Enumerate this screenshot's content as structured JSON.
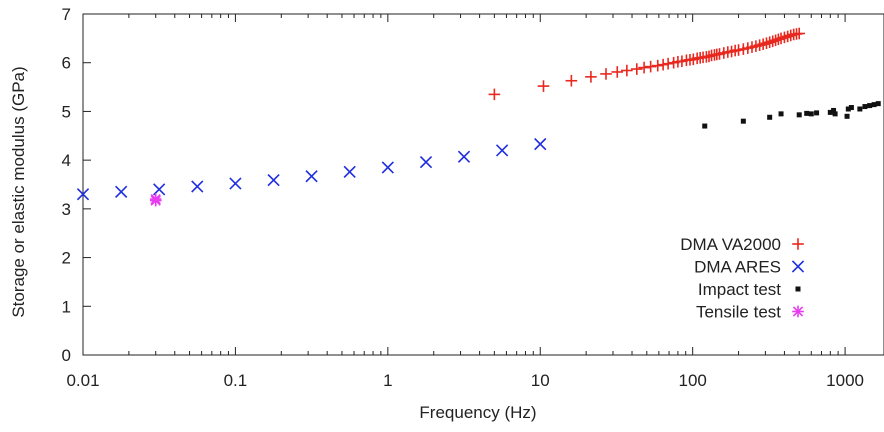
{
  "chart_data": {
    "type": "scatter",
    "xlabel": "Frequency (Hz)",
    "ylabel": "Storage or elastic modulus (GPa)",
    "x_scale": "log",
    "xlim": [
      0.01,
      1800
    ],
    "ylim": [
      0,
      7
    ],
    "x_ticks": [
      {
        "value": 0.01,
        "label": "0.01"
      },
      {
        "value": 0.1,
        "label": "0.1"
      },
      {
        "value": 1,
        "label": "1"
      },
      {
        "value": 10,
        "label": "10"
      },
      {
        "value": 100,
        "label": "100"
      },
      {
        "value": 1000,
        "label": "1000"
      }
    ],
    "y_ticks": [
      {
        "value": 0,
        "label": "0"
      },
      {
        "value": 1,
        "label": "1"
      },
      {
        "value": 2,
        "label": "2"
      },
      {
        "value": 3,
        "label": "3"
      },
      {
        "value": 4,
        "label": "4"
      },
      {
        "value": 5,
        "label": "5"
      },
      {
        "value": 6,
        "label": "6"
      },
      {
        "value": 7,
        "label": "7"
      }
    ],
    "grid": false,
    "legend_position": "bottom-right",
    "series": [
      {
        "name": "DMA VA2000",
        "marker": "plus",
        "color": "#e8281e",
        "points": [
          [
            5,
            5.35
          ],
          [
            10.5,
            5.52
          ],
          [
            16,
            5.63
          ],
          [
            21.5,
            5.71
          ],
          [
            27,
            5.77
          ],
          [
            32,
            5.81
          ],
          [
            37,
            5.84
          ],
          [
            43,
            5.87
          ],
          [
            48,
            5.9
          ],
          [
            53,
            5.92
          ],
          [
            59,
            5.94
          ],
          [
            64,
            5.96
          ],
          [
            69,
            5.98
          ],
          [
            75,
            6.0
          ],
          [
            80,
            6.02
          ],
          [
            85,
            6.03
          ],
          [
            91,
            6.05
          ],
          [
            96,
            6.06
          ],
          [
            101,
            6.07
          ],
          [
            107,
            6.09
          ],
          [
            112,
            6.1
          ],
          [
            117,
            6.11
          ],
          [
            123,
            6.12
          ],
          [
            128,
            6.13
          ],
          [
            133,
            6.15
          ],
          [
            139,
            6.16
          ],
          [
            144,
            6.17
          ],
          [
            150,
            6.18
          ],
          [
            160,
            6.2
          ],
          [
            170,
            6.22
          ],
          [
            180,
            6.23
          ],
          [
            190,
            6.25
          ],
          [
            200,
            6.26
          ],
          [
            215,
            6.28
          ],
          [
            230,
            6.3
          ],
          [
            245,
            6.32
          ],
          [
            260,
            6.34
          ],
          [
            275,
            6.36
          ],
          [
            290,
            6.38
          ],
          [
            305,
            6.4
          ],
          [
            320,
            6.42
          ],
          [
            335,
            6.44
          ],
          [
            350,
            6.46
          ],
          [
            365,
            6.48
          ],
          [
            380,
            6.5
          ],
          [
            400,
            6.52
          ],
          [
            420,
            6.54
          ],
          [
            440,
            6.56
          ],
          [
            460,
            6.58
          ],
          [
            480,
            6.59
          ],
          [
            500,
            6.6
          ]
        ]
      },
      {
        "name": "DMA ARES",
        "marker": "cross",
        "color": "#1f2fe0",
        "points": [
          [
            0.01,
            3.3
          ],
          [
            0.0178,
            3.35
          ],
          [
            0.0316,
            3.4
          ],
          [
            0.0562,
            3.46
          ],
          [
            0.1,
            3.52
          ],
          [
            0.178,
            3.59
          ],
          [
            0.316,
            3.67
          ],
          [
            0.562,
            3.76
          ],
          [
            1.0,
            3.85
          ],
          [
            1.78,
            3.96
          ],
          [
            3.16,
            4.07
          ],
          [
            5.62,
            4.2
          ],
          [
            10,
            4.33
          ]
        ]
      },
      {
        "name": "Impact test",
        "marker": "square",
        "color": "#111111",
        "points": [
          [
            120,
            4.7
          ],
          [
            215,
            4.8
          ],
          [
            320,
            4.88
          ],
          [
            380,
            4.95
          ],
          [
            500,
            4.93
          ],
          [
            560,
            4.96
          ],
          [
            600,
            4.95
          ],
          [
            650,
            4.97
          ],
          [
            800,
            4.98
          ],
          [
            840,
            5.02
          ],
          [
            860,
            4.95
          ],
          [
            1030,
            4.9
          ],
          [
            1050,
            5.05
          ],
          [
            1100,
            5.08
          ],
          [
            1250,
            5.05
          ],
          [
            1350,
            5.1
          ],
          [
            1450,
            5.12
          ],
          [
            1550,
            5.14
          ],
          [
            1650,
            5.16
          ]
        ]
      },
      {
        "name": "Tensile test",
        "marker": "asterisk",
        "color": "#e83cf0",
        "points": [
          [
            0.03,
            3.2
          ],
          [
            0.03,
            3.17
          ]
        ]
      }
    ]
  }
}
